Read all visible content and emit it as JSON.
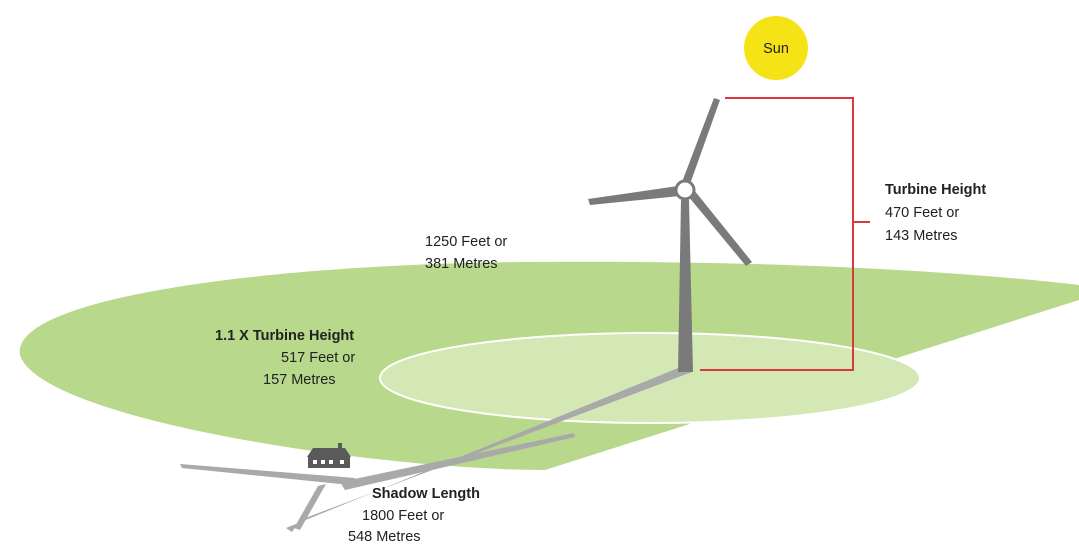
{
  "sun": {
    "label": "Sun"
  },
  "turbine_height": {
    "title": "Turbine Height",
    "lines": [
      "470 Feet or",
      "143 Metres"
    ]
  },
  "outer_radius": {
    "lines": [
      "1250 Feet or",
      "381 Metres"
    ]
  },
  "inner_radius": {
    "title": "1.1 X Turbine Height",
    "lines": [
      "517 Feet or",
      "157 Metres"
    ]
  },
  "shadow_length": {
    "title": "Shadow Length",
    "lines": [
      "1800 Feet or",
      "548 Metres"
    ]
  }
}
